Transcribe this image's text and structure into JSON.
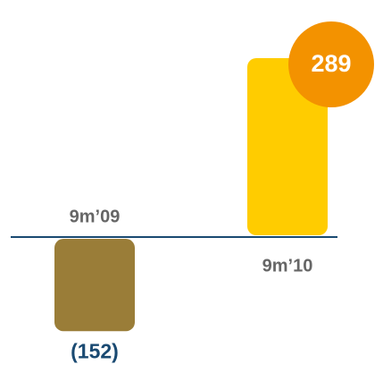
{
  "chart_data": {
    "type": "bar",
    "categories": [
      "9m’09",
      "9m’10"
    ],
    "values": [
      -152,
      289
    ],
    "value_labels": [
      "(152)",
      "289"
    ],
    "colors": [
      "#9a7d38",
      "#ffcc00"
    ],
    "ylim": [
      -195,
      354
    ]
  }
}
